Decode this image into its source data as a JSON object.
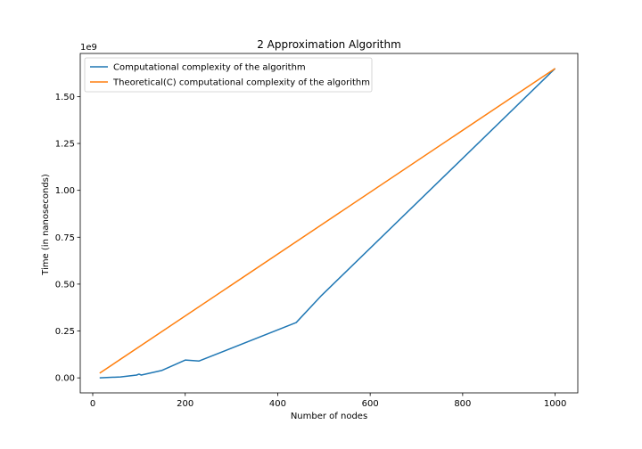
{
  "chart_data": {
    "type": "line",
    "title": "2 Approximation Algorithm",
    "xlabel": "Number of nodes",
    "ylabel": "Time (in nanoseconds)",
    "y_offset_label": "1e9",
    "xlim": [
      -27,
      1049
    ],
    "ylim": [
      -0.08,
      1.73
    ],
    "x_ticks": [
      0,
      200,
      400,
      600,
      800,
      1000
    ],
    "x_tick_labels": [
      "0",
      "200",
      "400",
      "600",
      "800",
      "1000"
    ],
    "y_ticks": [
      0.0,
      0.25,
      0.5,
      0.75,
      1.0,
      1.25,
      1.5
    ],
    "y_tick_labels": [
      "0.00",
      "0.25",
      "0.50",
      "0.75",
      "1.00",
      "1.25",
      "1.50"
    ],
    "grid": false,
    "legend_position": "upper-left",
    "series": [
      {
        "name": "Computational complexity of the algorithm",
        "color": "#1f77b4",
        "x": [
          15,
          60,
          95,
          100,
          105,
          150,
          200,
          230,
          440,
          495,
          1000
        ],
        "y": [
          0.0,
          0.005,
          0.015,
          0.02,
          0.015,
          0.04,
          0.095,
          0.09,
          0.295,
          0.44,
          1.65
        ]
      },
      {
        "name": "Theoretical(C) computational complexity of the algorithm",
        "color": "#ff7f0e",
        "x": [
          15,
          1000
        ],
        "y": [
          0.025,
          1.65
        ]
      }
    ]
  }
}
